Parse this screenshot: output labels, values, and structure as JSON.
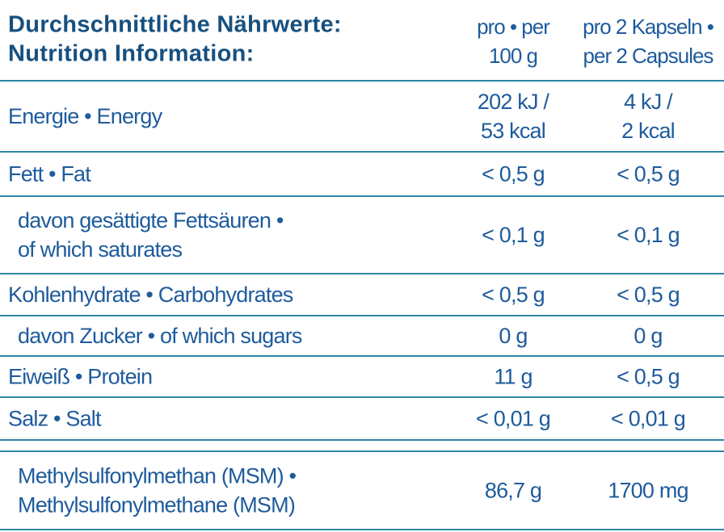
{
  "header": {
    "title": [
      "Durchschnittliche Nährwerte:",
      "Nutrition Information:"
    ],
    "columns": [
      [
        "pro • per",
        "100 g"
      ],
      [
        "pro 2 Kapseln •",
        "per 2 Capsules"
      ]
    ]
  },
  "rows": [
    {
      "label": [
        "Energie • Energy"
      ],
      "values": [
        [
          "202 kJ /",
          "53 kcal"
        ],
        [
          "4 kJ /",
          "2 kcal"
        ]
      ]
    },
    {
      "label": [
        "Fett • Fat"
      ],
      "values": [
        [
          "< 0,5 g"
        ],
        [
          "< 0,5 g"
        ]
      ]
    },
    {
      "label": [
        "davon gesättigte Fettsäuren •",
        "of which saturates"
      ],
      "values": [
        [
          "< 0,1 g"
        ],
        [
          "< 0,1 g"
        ]
      ]
    },
    {
      "label": [
        "Kohlenhydrate • Carbohydrates"
      ],
      "values": [
        [
          "< 0,5 g"
        ],
        [
          "< 0,5 g"
        ]
      ]
    },
    {
      "label": [
        "davon Zucker • of which sugars"
      ],
      "values": [
        [
          "0 g"
        ],
        [
          "0 g"
        ]
      ]
    },
    {
      "label": [
        "Eiweiß • Protein"
      ],
      "values": [
        [
          "11 g"
        ],
        [
          "< 0,5 g"
        ]
      ]
    },
    {
      "label": [
        "Salz • Salt"
      ],
      "values": [
        [
          "< 0,01 g"
        ],
        [
          "< 0,01 g"
        ]
      ]
    },
    {
      "label": [
        "Methylsulfonylmethan (MSM) •",
        "Methylsulfonylmethane (MSM)"
      ],
      "values": [
        [
          "86,7 g"
        ],
        [
          "1700 mg"
        ]
      ]
    }
  ]
}
